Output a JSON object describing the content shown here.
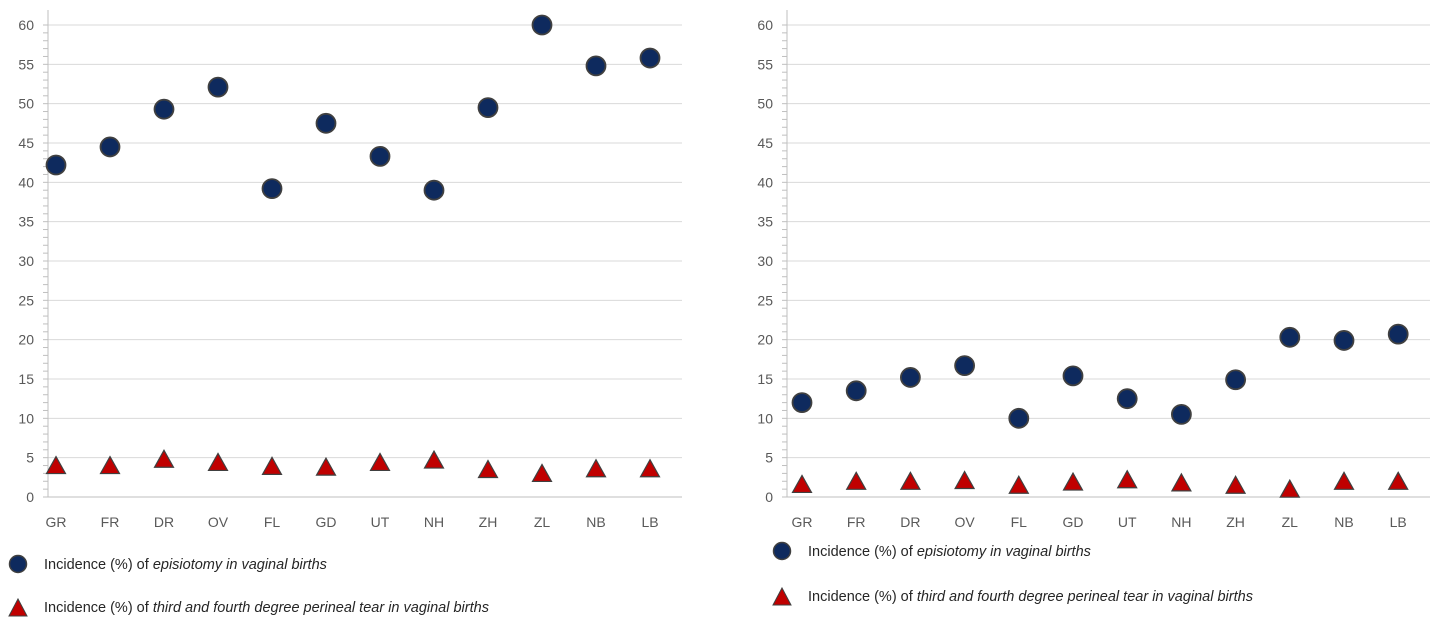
{
  "legend": {
    "episiotomy": {
      "prefix": "Incidence (%) of ",
      "emph": "episiotomy in vaginal births"
    },
    "tear": {
      "prefix": "Incidence (%) of ",
      "emph": "third and fourth degree perineal tear in vaginal births"
    }
  },
  "colors": {
    "episiotomy": "#0e2a5e",
    "tear": "#c00000",
    "marker_outline": "#404040",
    "grid": "#d9d9d9"
  },
  "chart_data": [
    {
      "type": "scatter",
      "categories": [
        "GR",
        "FR",
        "DR",
        "OV",
        "FL",
        "GD",
        "UT",
        "NH",
        "ZH",
        "ZL",
        "NB",
        "LB"
      ],
      "ylim": [
        0,
        60
      ],
      "yticks": [
        0,
        5,
        10,
        15,
        20,
        25,
        30,
        35,
        40,
        45,
        50,
        55,
        60
      ],
      "grid": true,
      "legend_position": "bottom",
      "series": [
        {
          "name": "Incidence (%) of episiotomy in vaginal births",
          "marker": "circle",
          "values": [
            42.2,
            44.5,
            49.3,
            52.1,
            39.2,
            47.5,
            43.3,
            39.0,
            49.5,
            60.0,
            54.8,
            55.8
          ]
        },
        {
          "name": "Incidence (%) of third and fourth degree perineal tear in vaginal births",
          "marker": "triangle",
          "values": [
            3.8,
            3.8,
            4.6,
            4.2,
            3.7,
            3.6,
            4.2,
            4.5,
            3.3,
            2.8,
            3.4,
            3.4
          ]
        }
      ]
    },
    {
      "type": "scatter",
      "categories": [
        "GR",
        "FR",
        "DR",
        "OV",
        "FL",
        "GD",
        "UT",
        "NH",
        "ZH",
        "ZL",
        "NB",
        "LB"
      ],
      "ylim": [
        0,
        60
      ],
      "yticks": [
        0,
        5,
        10,
        15,
        20,
        25,
        30,
        35,
        40,
        45,
        50,
        55,
        60
      ],
      "grid": true,
      "legend_position": "bottom",
      "series": [
        {
          "name": "Incidence (%) of episiotomy in vaginal births",
          "marker": "circle",
          "values": [
            12.0,
            13.5,
            15.2,
            16.7,
            10.0,
            15.4,
            12.5,
            10.5,
            14.9,
            20.3,
            19.9,
            20.7
          ]
        },
        {
          "name": "Incidence (%) of third and fourth degree perineal tear in vaginal births",
          "marker": "triangle",
          "values": [
            1.4,
            1.8,
            1.8,
            1.9,
            1.3,
            1.7,
            2.0,
            1.6,
            1.3,
            0.8,
            1.8,
            1.8
          ]
        }
      ]
    }
  ]
}
